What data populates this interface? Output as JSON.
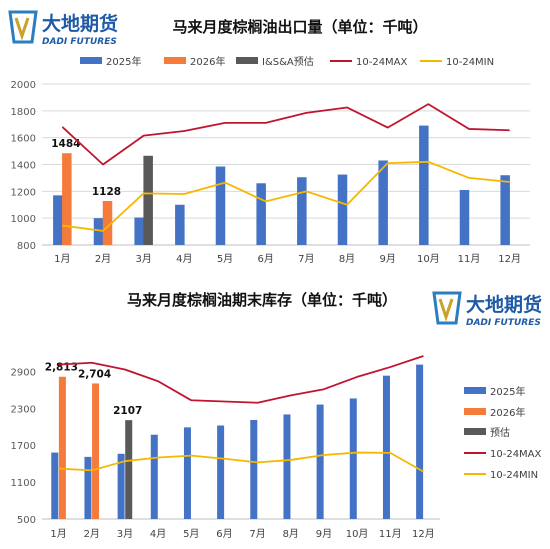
{
  "brand": {
    "name_cn": "大地期货",
    "name_en": "DADI FUTURES",
    "colors": {
      "blue": "#1f5aa6",
      "teal": "#2b9fb0",
      "gold": "#c9a227"
    }
  },
  "chart_data": [
    {
      "type": "bar",
      "title": "马来月度棕榈油出口量（单位：千吨）",
      "categories": [
        "1月",
        "2月",
        "3月",
        "4月",
        "5月",
        "6月",
        "7月",
        "8月",
        "9月",
        "10月",
        "11月",
        "12月"
      ],
      "yticks": [
        800,
        1000,
        1200,
        1400,
        1600,
        1800,
        2000
      ],
      "ylim": [
        800,
        2000
      ],
      "grid": true,
      "legend_position": "top",
      "series": [
        {
          "name": "2025年",
          "kind": "bar",
          "color": "#4472c4",
          "values": [
            1170,
            1000,
            1005,
            1100,
            1385,
            1260,
            1305,
            1325,
            1430,
            1690,
            1210,
            1320
          ]
        },
        {
          "name": "2026年",
          "kind": "bar",
          "color": "#f47b3c",
          "values": [
            1484,
            1128,
            null,
            null,
            null,
            null,
            null,
            null,
            null,
            null,
            null,
            null
          ],
          "labels": [
            "1484",
            "1128"
          ]
        },
        {
          "name": "I&S&A预估",
          "kind": "bar",
          "color": "#595959",
          "values": [
            null,
            null,
            1465,
            null,
            null,
            null,
            null,
            null,
            null,
            null,
            null,
            null
          ]
        },
        {
          "name": "10-24MAX",
          "kind": "line",
          "color": "#c0152f",
          "values": [
            1680,
            1400,
            1615,
            1650,
            1710,
            1710,
            1785,
            1825,
            1675,
            1850,
            1665,
            1655
          ]
        },
        {
          "name": "10-24MIN",
          "kind": "line",
          "color": "#f5b800",
          "values": [
            945,
            905,
            1185,
            1180,
            1265,
            1125,
            1200,
            1100,
            1410,
            1420,
            1300,
            1270
          ]
        }
      ]
    },
    {
      "type": "bar",
      "title": "马来月度棕榈油期末库存（单位：千吨）",
      "categories": [
        "1月",
        "2月",
        "3月",
        "4月",
        "5月",
        "6月",
        "7月",
        "8月",
        "9月",
        "10月",
        "11月",
        "12月"
      ],
      "yticks": [
        500,
        1100,
        1700,
        2300,
        2900
      ],
      "ylim": [
        500,
        3150
      ],
      "grid": false,
      "legend_position": "right",
      "series": [
        {
          "name": "2025年",
          "kind": "bar",
          "color": "#4472c4",
          "values": [
            1580,
            1510,
            1560,
            1870,
            1990,
            2020,
            2110,
            2200,
            2360,
            2460,
            2830,
            3010
          ]
        },
        {
          "name": "2026年",
          "kind": "bar",
          "color": "#f47b3c",
          "values": [
            2813,
            2704,
            null,
            null,
            null,
            null,
            null,
            null,
            null,
            null,
            null,
            null
          ],
          "labels": [
            "2,813",
            "2,704"
          ]
        },
        {
          "name": "预估",
          "kind": "bar",
          "color": "#595959",
          "values": [
            null,
            null,
            2107,
            null,
            null,
            null,
            null,
            null,
            null,
            null,
            null,
            null
          ],
          "labels": [
            "2107"
          ]
        },
        {
          "name": "10-24MAX",
          "kind": "line",
          "color": "#c0152f",
          "values": [
            3010,
            3040,
            2930,
            2740,
            2430,
            2410,
            2390,
            2510,
            2610,
            2810,
            2970,
            3150
          ]
        },
        {
          "name": "10-24MIN",
          "kind": "line",
          "color": "#f5b800",
          "values": [
            1320,
            1290,
            1440,
            1500,
            1530,
            1480,
            1420,
            1460,
            1540,
            1580,
            1575,
            1270
          ]
        }
      ]
    }
  ]
}
